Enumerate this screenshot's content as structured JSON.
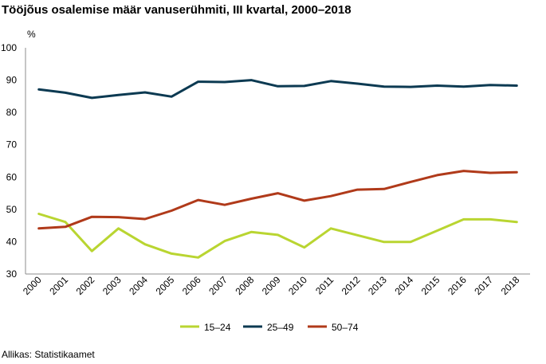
{
  "title": "Tööjõus osalemise määr vanuserühmiti, III kvartal, 2000–2018",
  "source": "Allikas: Statistikaamet",
  "chart_data": {
    "type": "line",
    "title": "Tööjõus osalemise määr vanuserühmiti, III kvartal, 2000–2018",
    "ylabel": "%",
    "xlabel": "",
    "ylim": [
      30,
      100
    ],
    "yticks": [
      30,
      40,
      50,
      60,
      70,
      80,
      90,
      100
    ],
    "grid": false,
    "legend_position": "bottom",
    "categories": [
      "2000",
      "2001",
      "2002",
      "2003",
      "2004",
      "2005",
      "2006",
      "2007",
      "2008",
      "2009",
      "2010",
      "2011",
      "2012",
      "2013",
      "2014",
      "2015",
      "2016",
      "2017",
      "2018"
    ],
    "series": [
      {
        "name": "15–24",
        "color": "#b9d531",
        "values": [
          48.6,
          46.1,
          37.1,
          44.1,
          39.2,
          36.3,
          35.1,
          40.2,
          43.0,
          42.1,
          38.2,
          44.1,
          42.0,
          39.9,
          39.9,
          43.4,
          46.9,
          46.9,
          46.1
        ]
      },
      {
        "name": "25–49",
        "color": "#0c3a52",
        "values": [
          87.1,
          86.1,
          84.5,
          85.4,
          86.2,
          84.9,
          89.5,
          89.4,
          90.0,
          88.1,
          88.2,
          89.7,
          88.9,
          88.0,
          87.9,
          88.3,
          88.0,
          88.5,
          88.3
        ]
      },
      {
        "name": "50–74",
        "color": "#b03a1a",
        "values": [
          44.1,
          44.6,
          47.7,
          47.6,
          47.0,
          49.6,
          52.9,
          51.4,
          53.3,
          55.0,
          52.7,
          54.1,
          56.1,
          56.3,
          58.5,
          60.6,
          61.9,
          61.3,
          61.5
        ]
      }
    ]
  }
}
